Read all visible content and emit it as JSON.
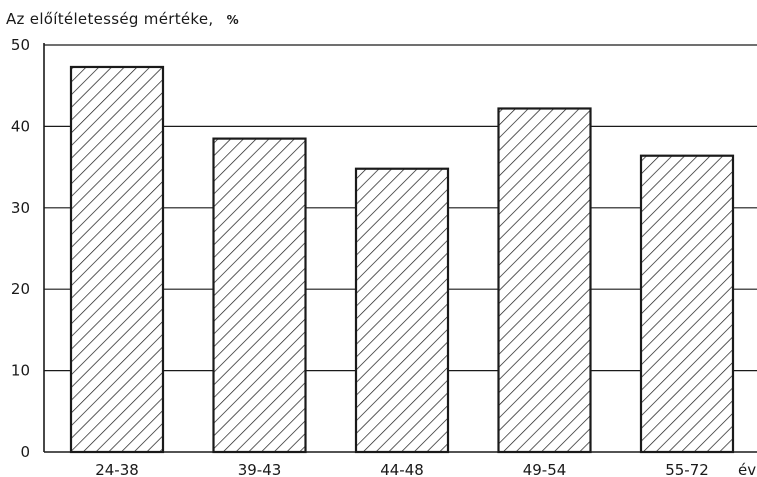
{
  "chart_data": {
    "type": "bar",
    "title": "Az előítéletesség mértéke,",
    "ylabel_unit": "%",
    "xlabel": "év",
    "categories": [
      "24-38",
      "39-43",
      "44-48",
      "49-54",
      "55-72"
    ],
    "values": [
      47.3,
      38.5,
      34.8,
      42.2,
      36.4
    ],
    "ylim": [
      0,
      50
    ],
    "yticks": [
      "0",
      "10",
      "20",
      "30",
      "40",
      "50"
    ],
    "grid": true,
    "bar_fill": "diagonal-hatch",
    "colors": {
      "ink": "#1a1a1a",
      "background": "#ffffff"
    }
  }
}
